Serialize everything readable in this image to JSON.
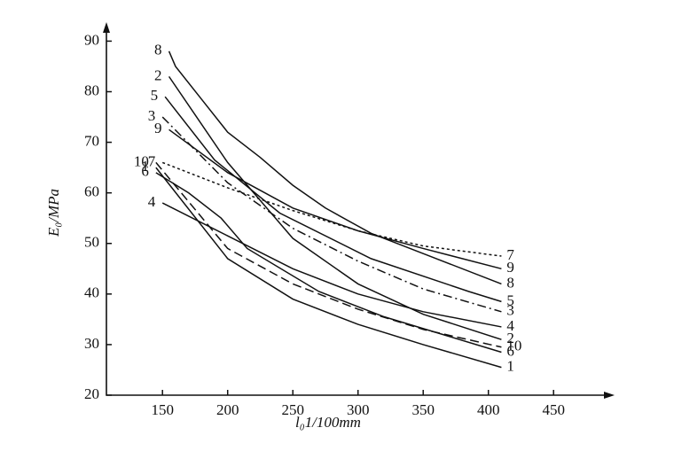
{
  "chart_data": {
    "type": "line",
    "xlabel": "l₀1/100mm",
    "ylabel": "E₀/MPa",
    "xlim": [
      107,
      490
    ],
    "ylim": [
      20,
      92
    ],
    "xticks": [
      150,
      200,
      250,
      300,
      350,
      400,
      450
    ],
    "yticks": [
      20,
      30,
      40,
      50,
      60,
      70,
      80,
      90
    ],
    "series": [
      {
        "name": "1",
        "color": "#111111",
        "dash": "solid",
        "x": [
          145,
          200,
          250,
          300,
          350,
          410
        ],
        "values": [
          65,
          47,
          39,
          34,
          30,
          25.5
        ]
      },
      {
        "name": "2",
        "color": "#111111",
        "dash": "solid",
        "x": [
          155,
          200,
          250,
          300,
          350,
          410
        ],
        "values": [
          83,
          66,
          51,
          42,
          36,
          31
        ]
      },
      {
        "name": "3",
        "color": "#111111",
        "dash": "dashdot",
        "x": [
          150,
          200,
          250,
          300,
          350,
          410
        ],
        "values": [
          75,
          62,
          53,
          46.5,
          41,
          36.5
        ]
      },
      {
        "name": "4",
        "color": "#111111",
        "dash": "solid",
        "x": [
          150,
          200,
          250,
          300,
          350,
          410
        ],
        "values": [
          58,
          51.5,
          45,
          40,
          36.5,
          33.5
        ]
      },
      {
        "name": "5",
        "color": "#111111",
        "dash": "solid",
        "x": [
          152,
          190,
          240,
          310,
          385,
          410
        ],
        "values": [
          79,
          66.5,
          56,
          47,
          40.5,
          38.5
        ]
      },
      {
        "name": "6",
        "color": "#111111",
        "dash": "solid",
        "x": [
          145,
          170,
          195,
          215,
          270,
          320,
          365,
          410
        ],
        "values": [
          64,
          60,
          55,
          49,
          40.5,
          35.5,
          32,
          28.5
        ]
      },
      {
        "name": "7",
        "color": "#111111",
        "dash": "dotted",
        "x": [
          150,
          200,
          250,
          300,
          350,
          410
        ],
        "values": [
          66,
          61,
          56.5,
          52.5,
          49.5,
          47.5
        ]
      },
      {
        "name": "8",
        "color": "#111111",
        "dash": "solid",
        "x": [
          155,
          160,
          180,
          200,
          225,
          250,
          275,
          310,
          350,
          410
        ],
        "values": [
          88,
          85,
          78.5,
          72,
          67,
          61.5,
          57,
          52,
          48,
          42
        ]
      },
      {
        "name": "9",
        "color": "#111111",
        "dash": "solid",
        "x": [
          155,
          200,
          250,
          300,
          350,
          410
        ],
        "values": [
          72.5,
          64,
          57,
          52.5,
          49,
          45
        ]
      },
      {
        "name": "10",
        "color": "#111111",
        "dash": "dashed",
        "x": [
          145,
          200,
          250,
          300,
          350,
          410
        ],
        "values": [
          66,
          49,
          42,
          37,
          33,
          29.5
        ]
      }
    ]
  }
}
